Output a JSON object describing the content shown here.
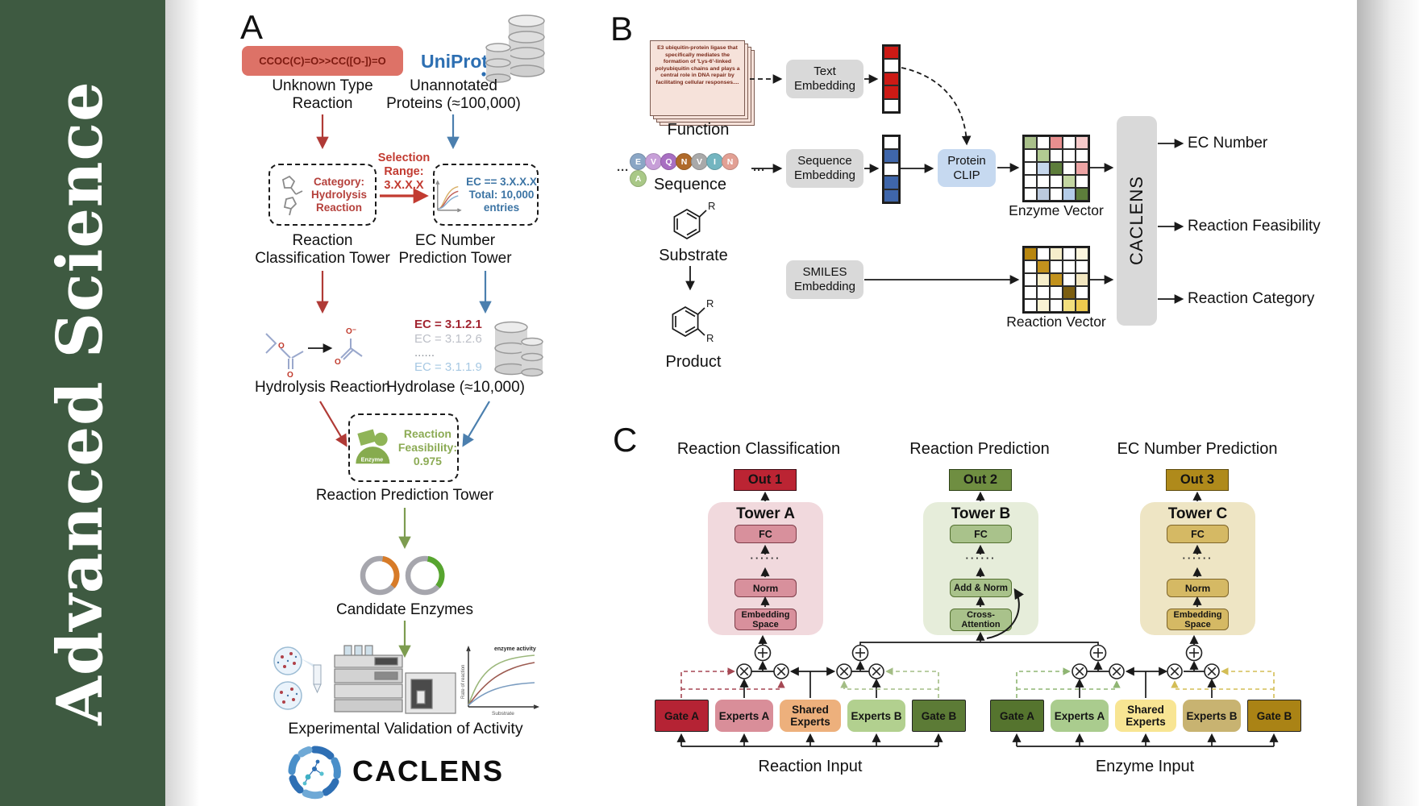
{
  "journal": {
    "name": "Advanced  Science"
  },
  "panelA": {
    "label": "A",
    "smiles": "CCOC(C)=O>>CC([O-])=O",
    "unknown_reaction": "Unknown Type\nReaction",
    "uniprot": "UniProt",
    "unannotated": "Unannotated\nProteins (≈100,000)",
    "selection": "Selection\nRange:\n3.X.X.X",
    "category_box": "Category:\nHydrolysis\nReaction",
    "ec_box": "EC == 3.X.X.X\nTotal: 10,000\nentries",
    "tower_classification": "Reaction\nClassification Tower",
    "tower_ec": "EC Number\nPrediction Tower",
    "hydrolysis_reaction": "Hydrolysis Reaction",
    "ec_list": [
      {
        "text": "EC = 3.1.2.1",
        "color": "#a22531",
        "bold": true
      },
      {
        "text": "EC = 3.1.2.6",
        "color": "#bcbfc7",
        "bold": false
      },
      {
        "text": "......",
        "color": "#8f959d",
        "bold": false
      },
      {
        "text": "EC = 3.1.1.9",
        "color": "#a6c8e3",
        "bold": false
      }
    ],
    "hydrolase": "Hydrolase (≈10,000)",
    "enzyme_icon_label": "Enzyme",
    "feasibility": "Reaction\nFeasibility:\n0.975",
    "tower_prediction": "Reaction Prediction Tower",
    "candidate_enzymes": "Candidate Enzymes",
    "validation": "Experimental Validation of Activity",
    "brand": "CACLENS",
    "activity_plot": {
      "ylabel": "Rate of reaction",
      "xlabel": "Substrate",
      "annotation": "enzyme activity"
    }
  },
  "panelB": {
    "label": "B",
    "function_card_text": "E3 ubiquitin-protein ligase that specifically mediates the formation of 'Lys-6'-linked polyubiquitin chains and plays a central role in DNA repair by facilitating cellular responses....",
    "function_label": "Function",
    "ellipsis": "···",
    "sequence": {
      "letters": [
        {
          "ch": "E",
          "color": "#8aa6c5"
        },
        {
          "ch": "V",
          "color": "#c79fd8"
        },
        {
          "ch": "Q",
          "color": "#a86fc2"
        },
        {
          "ch": "N",
          "color": "#b06a2a"
        },
        {
          "ch": "V",
          "color": "#a9a9a9"
        },
        {
          "ch": "I",
          "color": "#73b5c0"
        },
        {
          "ch": "N",
          "color": "#e2a094"
        },
        {
          "ch": "A",
          "color": "#a9c887"
        }
      ]
    },
    "sequence_label": "Sequence",
    "substrate_label": "Substrate",
    "product_label": "Product",
    "r_label": "R",
    "text_embedding": "Text\nEmbedding",
    "sequence_embedding": "Sequence\nEmbedding",
    "smiles_embedding": "SMILES\nEmbedding",
    "protein_clip": "Protein\nCLIP",
    "enzyme_vector_label": "Enzyme Vector",
    "reaction_vector_label": "Reaction Vector",
    "caclens_bar": "CACLENS",
    "outputs": [
      "EC Number",
      "Reaction Feasibility",
      "Reaction Category"
    ],
    "vectors": {
      "text": [
        "#cc1a15",
        "#ffffff",
        "#cc1a15",
        "#cc1a15",
        "#ffffff"
      ],
      "sequence": [
        "#ffffff",
        "#3f66aa",
        "#ffffff",
        "#3f66aa",
        "#3f66aa"
      ]
    },
    "matrices": {
      "enzyme": [
        [
          "#a9c08a",
          "#ffffff",
          "#e88f8f",
          "#ffffff",
          "#f6caca"
        ],
        [
          "#ffffff",
          "#b2ca92",
          "#ffffff",
          "#ffffff",
          "#ffffff"
        ],
        [
          "#ffffff",
          "#c6d7ec",
          "#5d7d3b",
          "#ffffff",
          "#eda4a4"
        ],
        [
          "#ffffff",
          "#ffffff",
          "#ffffff",
          "#c3d6a2",
          "#ffffff"
        ],
        [
          "#ffffff",
          "#bccadd",
          "#ffffff",
          "#b4cce8",
          "#5d7d3b"
        ]
      ],
      "reaction": [
        [
          "#b8860f",
          "#ffffff",
          "#f6eecb",
          "#ffffff",
          "#fbf5dd"
        ],
        [
          "#ffffff",
          "#c2921d",
          "#ffffff",
          "#ffffff",
          "#ffffff"
        ],
        [
          "#ffffff",
          "#f6eecb",
          "#c2921d",
          "#ffffff",
          "#f2e6c0"
        ],
        [
          "#ffffff",
          "#ffffff",
          "#ffffff",
          "#7c5e10",
          "#ffffff"
        ],
        [
          "#ffffff",
          "#f9f2d3",
          "#ffffff",
          "#f2df7e",
          "#ecc94e"
        ]
      ]
    }
  },
  "panelC": {
    "label": "C",
    "headers": [
      "Reaction Classification",
      "Reaction Prediction",
      "EC Number Prediction"
    ],
    "dots": "······",
    "towers": [
      {
        "out": "Out 1",
        "name": "Tower A",
        "box1": "FC",
        "box2": "Norm",
        "box3": "Embedding\nSpace",
        "out_bg": "#bb2433",
        "bg": "#f1d9dd",
        "box_bg": "#d8909c",
        "box_border": "#7e3d49"
      },
      {
        "out": "Out 2",
        "name": "Tower B",
        "box1": "FC",
        "box2": "Add & Norm",
        "box3": "Cross-\nAttention",
        "out_bg": "#6f8e41",
        "bg": "#e6edda",
        "box_bg": "#a9c28b",
        "box_border": "#53702f"
      },
      {
        "out": "Out 3",
        "name": "Tower C",
        "box1": "FC",
        "box2": "Norm",
        "box3": "Embedding\nSpace",
        "out_bg": "#af8a1b",
        "bg": "#eee5c4",
        "box_bg": "#d5b964",
        "box_border": "#7e652a"
      }
    ],
    "groups": [
      {
        "input_label": "Reaction Input",
        "gate_a": "Gate A",
        "experts_a": "Experts A",
        "shared": "Shared\nExperts",
        "experts_b": "Experts B",
        "gate_b": "Gate B",
        "colors": {
          "gate_a": "#b52334",
          "experts_a": "#d98e99",
          "shared": "#edb07c",
          "experts_b": "#b2d08f",
          "gate_b": "#5c7b36"
        }
      },
      {
        "input_label": "Enzyme Input",
        "gate_a": "Gate A",
        "experts_a": "Experts A",
        "shared": "Shared\nExperts",
        "experts_b": "Experts B",
        "gate_b": "Gate B",
        "colors": {
          "gate_a": "#55742e",
          "experts_a": "#aacc8e",
          "shared": "#f8e593",
          "experts_b": "#c8b371",
          "gate_b": "#aa8315"
        }
      }
    ]
  }
}
